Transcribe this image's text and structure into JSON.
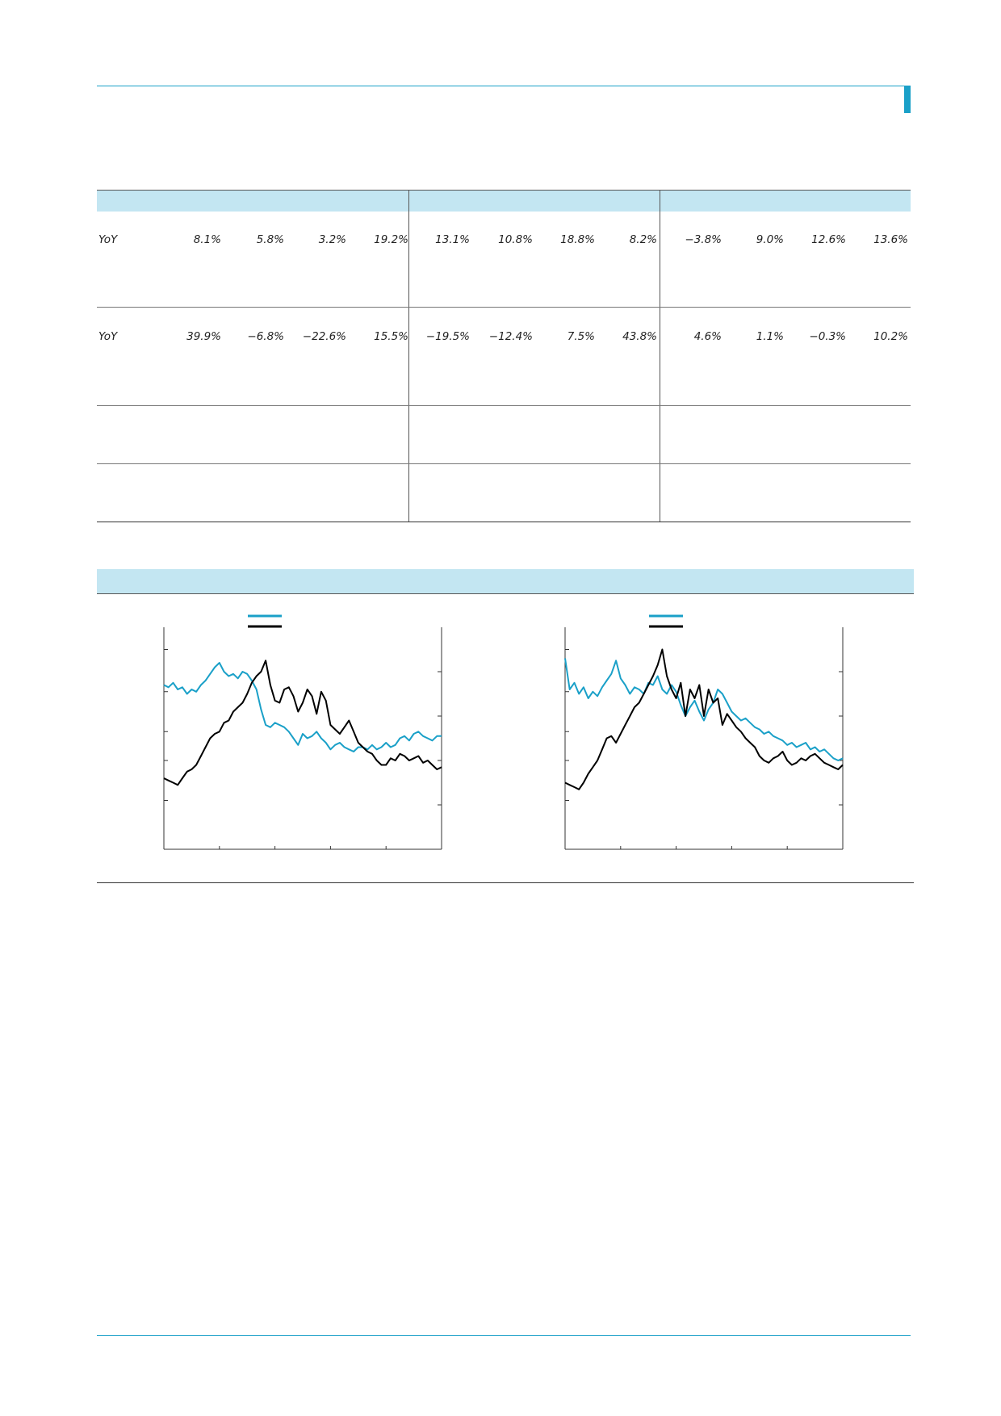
{
  "colors": {
    "accent": "#1aa0c8",
    "header_fill": "#c3e6f2",
    "series_a": "#1aa0c8",
    "series_b": "#000000"
  },
  "table": {
    "rows": [
      {
        "label": "YoY",
        "groups": [
          [
            "8.1%",
            "5.8%",
            "3.2%",
            "19.2%"
          ],
          [
            "13.1%",
            "10.8%",
            "18.8%",
            "8.2%"
          ],
          [
            "−3.8%",
            "9.0%",
            "12.6%",
            "13.6%"
          ]
        ]
      },
      {
        "label": "YoY",
        "groups": [
          [
            "39.9%",
            "−6.8%",
            "−22.6%",
            "15.5%"
          ],
          [
            "−19.5%",
            "−12.4%",
            "7.5%",
            "43.8%"
          ],
          [
            "4.6%",
            "1.1%",
            "−0.3%",
            "10.2%"
          ]
        ]
      }
    ]
  },
  "chart_data": [
    {
      "type": "line",
      "x": [
        0,
        1,
        2,
        3,
        4,
        5,
        6,
        7,
        8,
        9,
        10,
        11,
        12,
        13,
        14,
        15,
        16,
        17,
        18,
        19,
        20,
        21,
        22,
        23,
        24,
        25,
        26,
        27,
        28,
        29,
        30,
        31,
        32,
        33,
        34,
        35,
        36,
        37,
        38,
        39,
        40,
        41,
        42,
        43,
        44,
        45,
        46,
        47,
        48,
        49,
        50,
        51,
        52,
        53,
        54,
        55,
        56,
        57,
        58,
        59,
        60
      ],
      "series": [
        {
          "values": [
            0.74,
            0.73,
            0.75,
            0.72,
            0.73,
            0.7,
            0.72,
            0.71,
            0.74,
            0.76,
            0.79,
            0.82,
            0.84,
            0.8,
            0.78,
            0.79,
            0.77,
            0.8,
            0.79,
            0.76,
            0.72,
            0.63,
            0.56,
            0.55,
            0.57,
            0.56,
            0.55,
            0.53,
            0.5,
            0.47,
            0.52,
            0.5,
            0.51,
            0.53,
            0.5,
            0.48,
            0.45,
            0.47,
            0.48,
            0.46,
            0.45,
            0.44,
            0.46,
            0.46,
            0.45,
            0.47,
            0.45,
            0.46,
            0.48,
            0.46,
            0.47,
            0.5,
            0.51,
            0.49,
            0.52,
            0.53,
            0.51,
            0.5,
            0.49,
            0.51,
            0.51
          ]
        },
        {
          "values": [
            0.32,
            0.31,
            0.3,
            0.29,
            0.32,
            0.35,
            0.36,
            0.38,
            0.42,
            0.46,
            0.5,
            0.52,
            0.53,
            0.57,
            0.58,
            0.62,
            0.64,
            0.66,
            0.7,
            0.75,
            0.78,
            0.8,
            0.85,
            0.74,
            0.67,
            0.66,
            0.72,
            0.73,
            0.69,
            0.62,
            0.66,
            0.72,
            0.69,
            0.61,
            0.71,
            0.67,
            0.56,
            0.54,
            0.52,
            0.55,
            0.58,
            0.53,
            0.48,
            0.46,
            0.44,
            0.43,
            0.4,
            0.38,
            0.38,
            0.41,
            0.4,
            0.43,
            0.42,
            0.4,
            0.41,
            0.42,
            0.39,
            0.4,
            0.38,
            0.36,
            0.37
          ]
        }
      ]
    },
    {
      "type": "line",
      "x": [
        0,
        1,
        2,
        3,
        4,
        5,
        6,
        7,
        8,
        9,
        10,
        11,
        12,
        13,
        14,
        15,
        16,
        17,
        18,
        19,
        20,
        21,
        22,
        23,
        24,
        25,
        26,
        27,
        28,
        29,
        30,
        31,
        32,
        33,
        34,
        35,
        36,
        37,
        38,
        39,
        40,
        41,
        42,
        43,
        44,
        45,
        46,
        47,
        48,
        49,
        50,
        51,
        52,
        53,
        54,
        55,
        56,
        57,
        58,
        59,
        60
      ],
      "series": [
        {
          "values": [
            0.86,
            0.72,
            0.75,
            0.7,
            0.73,
            0.68,
            0.71,
            0.69,
            0.73,
            0.76,
            0.79,
            0.85,
            0.77,
            0.74,
            0.7,
            0.73,
            0.72,
            0.7,
            0.75,
            0.74,
            0.78,
            0.72,
            0.7,
            0.74,
            0.71,
            0.65,
            0.6,
            0.64,
            0.67,
            0.62,
            0.58,
            0.63,
            0.66,
            0.72,
            0.7,
            0.66,
            0.62,
            0.6,
            0.58,
            0.59,
            0.57,
            0.55,
            0.54,
            0.52,
            0.53,
            0.51,
            0.5,
            0.49,
            0.47,
            0.48,
            0.46,
            0.47,
            0.48,
            0.45,
            0.46,
            0.44,
            0.45,
            0.43,
            0.41,
            0.4,
            0.41
          ]
        },
        {
          "values": [
            0.3,
            0.29,
            0.28,
            0.27,
            0.3,
            0.34,
            0.37,
            0.4,
            0.45,
            0.5,
            0.51,
            0.48,
            0.52,
            0.56,
            0.6,
            0.64,
            0.66,
            0.7,
            0.74,
            0.78,
            0.83,
            0.9,
            0.78,
            0.72,
            0.68,
            0.75,
            0.6,
            0.72,
            0.68,
            0.74,
            0.6,
            0.72,
            0.66,
            0.68,
            0.56,
            0.61,
            0.58,
            0.55,
            0.53,
            0.5,
            0.48,
            0.46,
            0.42,
            0.4,
            0.39,
            0.41,
            0.42,
            0.44,
            0.4,
            0.38,
            0.39,
            0.41,
            0.4,
            0.42,
            0.43,
            0.41,
            0.39,
            0.38,
            0.37,
            0.36,
            0.38
          ]
        }
      ]
    }
  ]
}
